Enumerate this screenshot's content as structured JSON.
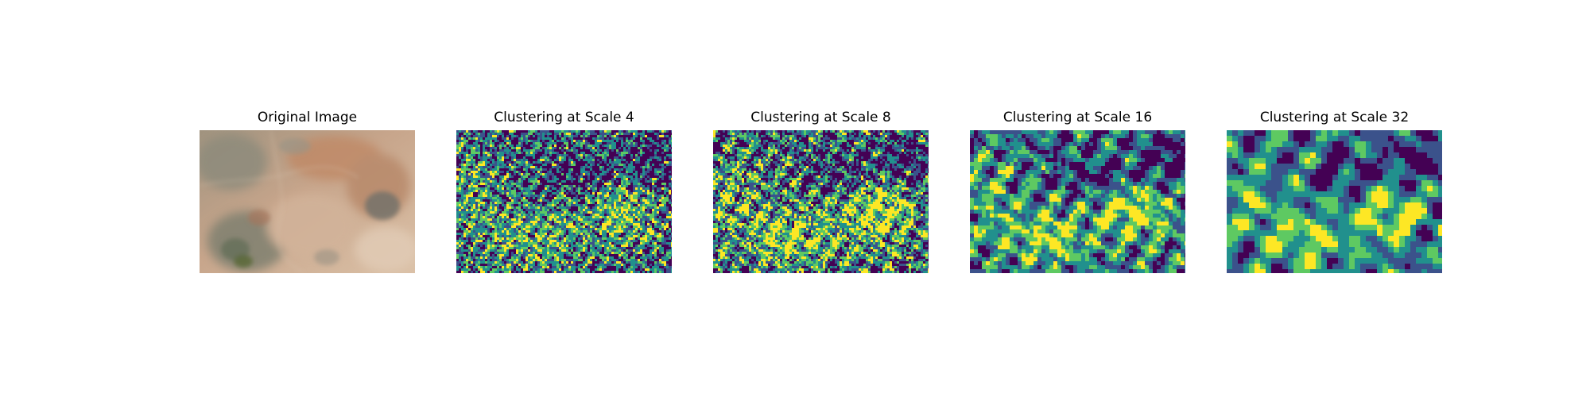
{
  "figure": {
    "panels": [
      {
        "title": "Original Image",
        "kind": "photo"
      },
      {
        "title": "Clustering at Scale 4",
        "kind": "cluster",
        "scale": 4
      },
      {
        "title": "Clustering at Scale 8",
        "kind": "cluster",
        "scale": 8
      },
      {
        "title": "Clustering at Scale 16",
        "kind": "cluster",
        "scale": 16
      },
      {
        "title": "Clustering at Scale 32",
        "kind": "cluster",
        "scale": 32
      }
    ],
    "palette": {
      "purple": "#440154",
      "blue": "#3b528b",
      "teal": "#21908d",
      "green": "#5ec962",
      "yellow": "#fde725",
      "tan": "#c9a88a",
      "rust": "#b88262",
      "sage": "#8d8d78",
      "sand": "#ddc2aa"
    }
  }
}
